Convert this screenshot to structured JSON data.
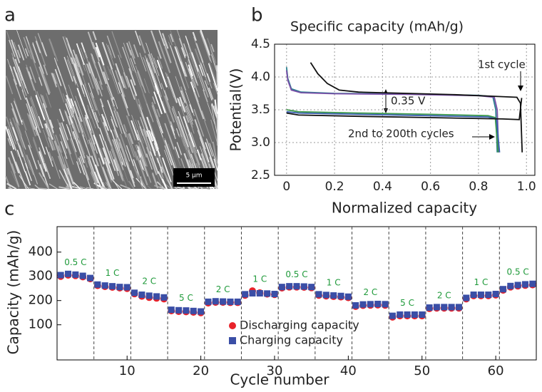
{
  "panel_labels": [
    "a",
    "b",
    "c"
  ],
  "image_a": {
    "scale_bar": "5 μm"
  },
  "chart_data": [
    {
      "type": "line",
      "title": "Specific capacity (mAh/g)",
      "x_label": "Normalized capacity",
      "y_label": "Potential(V)",
      "annotations": [
        "1st cycle",
        "0.35 V",
        "2nd to 200th cycles"
      ],
      "xlim": [
        -0.05,
        1.035
      ],
      "ylim": [
        2.5,
        4.5
      ],
      "xticks": [
        0,
        0.2,
        0.4,
        0.6,
        0.8,
        {
          "value": 1,
          "label": "1.0"
        }
      ],
      "yticks": [
        2.5,
        {
          "value": 3,
          "label": "3.0"
        },
        3.5,
        {
          "value": 4,
          "label": "4.0"
        },
        4.5
      ],
      "grid": true,
      "series": [
        {
          "color": "#2a7f8f",
          "x": [
            0,
            0.005,
            0.02,
            0.06,
            0.2,
            0.5,
            0.8,
            0.86,
            0.872,
            0.878
          ],
          "values": [
            4.15,
            3.98,
            3.82,
            3.77,
            3.75,
            3.74,
            3.72,
            3.7,
            3.5,
            2.85
          ]
        },
        {
          "color": "#7a4fa8",
          "x": [
            0,
            0.005,
            0.02,
            0.06,
            0.2,
            0.5,
            0.8,
            0.866,
            0.878,
            0.884
          ],
          "values": [
            4.1,
            3.95,
            3.8,
            3.76,
            3.745,
            3.735,
            3.715,
            3.69,
            3.5,
            2.85
          ]
        },
        {
          "color": "#3c9a4a",
          "x": [
            0,
            0.05,
            0.3,
            0.6,
            0.84,
            0.87,
            0.882
          ],
          "values": [
            3.5,
            3.47,
            3.45,
            3.43,
            3.41,
            3.38,
            2.85
          ]
        },
        {
          "color": "#3a5fb0",
          "x": [
            0,
            0.05,
            0.3,
            0.6,
            0.84,
            0.875,
            0.888
          ],
          "values": [
            3.47,
            3.45,
            3.43,
            3.41,
            3.39,
            3.36,
            2.85
          ]
        },
        {
          "color": "#111111",
          "x": [
            0.1,
            0.13,
            0.17,
            0.22,
            0.3,
            0.5,
            0.7,
            0.9,
            0.96,
            0.975,
            0.982
          ],
          "values": [
            4.22,
            4.05,
            3.9,
            3.8,
            3.77,
            3.75,
            3.73,
            3.7,
            3.69,
            3.6,
            2.85
          ]
        },
        {
          "color": "#111111",
          "x": [
            0,
            0.05,
            0.3,
            0.6,
            0.9,
            0.97,
            0.98
          ],
          "values": [
            3.45,
            3.42,
            3.4,
            3.38,
            3.36,
            3.35,
            3.68
          ]
        }
      ]
    },
    {
      "type": "scatter",
      "x_label": "Cycle number",
      "y_label": "Capacity (mAh/g)",
      "xlim": [
        0.5,
        65.5
      ],
      "ylim": [
        -45,
        505
      ],
      "xticks": [
        10,
        20,
        30,
        40,
        50,
        60
      ],
      "yticks": [
        100,
        200,
        300,
        400
      ],
      "dividers": [
        5.5,
        10.5,
        15.5,
        20.5,
        25.5,
        30.5,
        35.5,
        40.5,
        45.5,
        50.5,
        55.5,
        60.5
      ],
      "rate_labels": [
        "0.5 C",
        "1 C",
        "2 C",
        "5 C",
        "2 C",
        "1 C",
        "0.5 C",
        "1 C",
        "2 C",
        "5 C",
        "2 C",
        "1 C",
        "0.5 C"
      ],
      "x": [
        1,
        2,
        3,
        4,
        5,
        6,
        7,
        8,
        9,
        10,
        11,
        12,
        13,
        14,
        15,
        16,
        17,
        18,
        19,
        20,
        21,
        22,
        23,
        24,
        25,
        26,
        27,
        28,
        29,
        30,
        31,
        32,
        33,
        34,
        35,
        36,
        37,
        38,
        39,
        40,
        41,
        42,
        43,
        44,
        45,
        46,
        47,
        48,
        49,
        50,
        51,
        52,
        53,
        54,
        55,
        56,
        57,
        58,
        59,
        60,
        61,
        62,
        63,
        64,
        65
      ],
      "series": [
        {
          "name": "Discharging capacity",
          "color": "#e8222a",
          "marker": "circle",
          "values": [
            300,
            305,
            303,
            298,
            290,
            262,
            258,
            255,
            252,
            250,
            228,
            218,
            213,
            210,
            207,
            158,
            155,
            154,
            152,
            150,
            190,
            193,
            193,
            192,
            192,
            222,
            240,
            232,
            227,
            225,
            252,
            256,
            256,
            255,
            253,
            222,
            219,
            217,
            215,
            212,
            176,
            180,
            181,
            182,
            181,
            132,
            137,
            137,
            137,
            137,
            167,
            169,
            169,
            169,
            169,
            207,
            220,
            220,
            220,
            223,
            243,
            256,
            260,
            263,
            265
          ]
        },
        {
          "name": "Charging capacity",
          "color": "#3a4ea6",
          "marker": "square",
          "values": [
            305,
            310,
            307,
            302,
            293,
            266,
            262,
            259,
            256,
            255,
            232,
            224,
            220,
            217,
            213,
            162,
            160,
            159,
            157,
            155,
            195,
            197,
            196,
            195,
            195,
            226,
            230,
            230,
            229,
            227,
            256,
            259,
            259,
            258,
            256,
            226,
            223,
            221,
            219,
            216,
            180,
            184,
            185,
            186,
            185,
            137,
            142,
            142,
            142,
            142,
            171,
            173,
            173,
            173,
            173,
            211,
            224,
            224,
            224,
            227,
            247,
            260,
            264,
            267,
            269
          ]
        }
      ]
    }
  ]
}
